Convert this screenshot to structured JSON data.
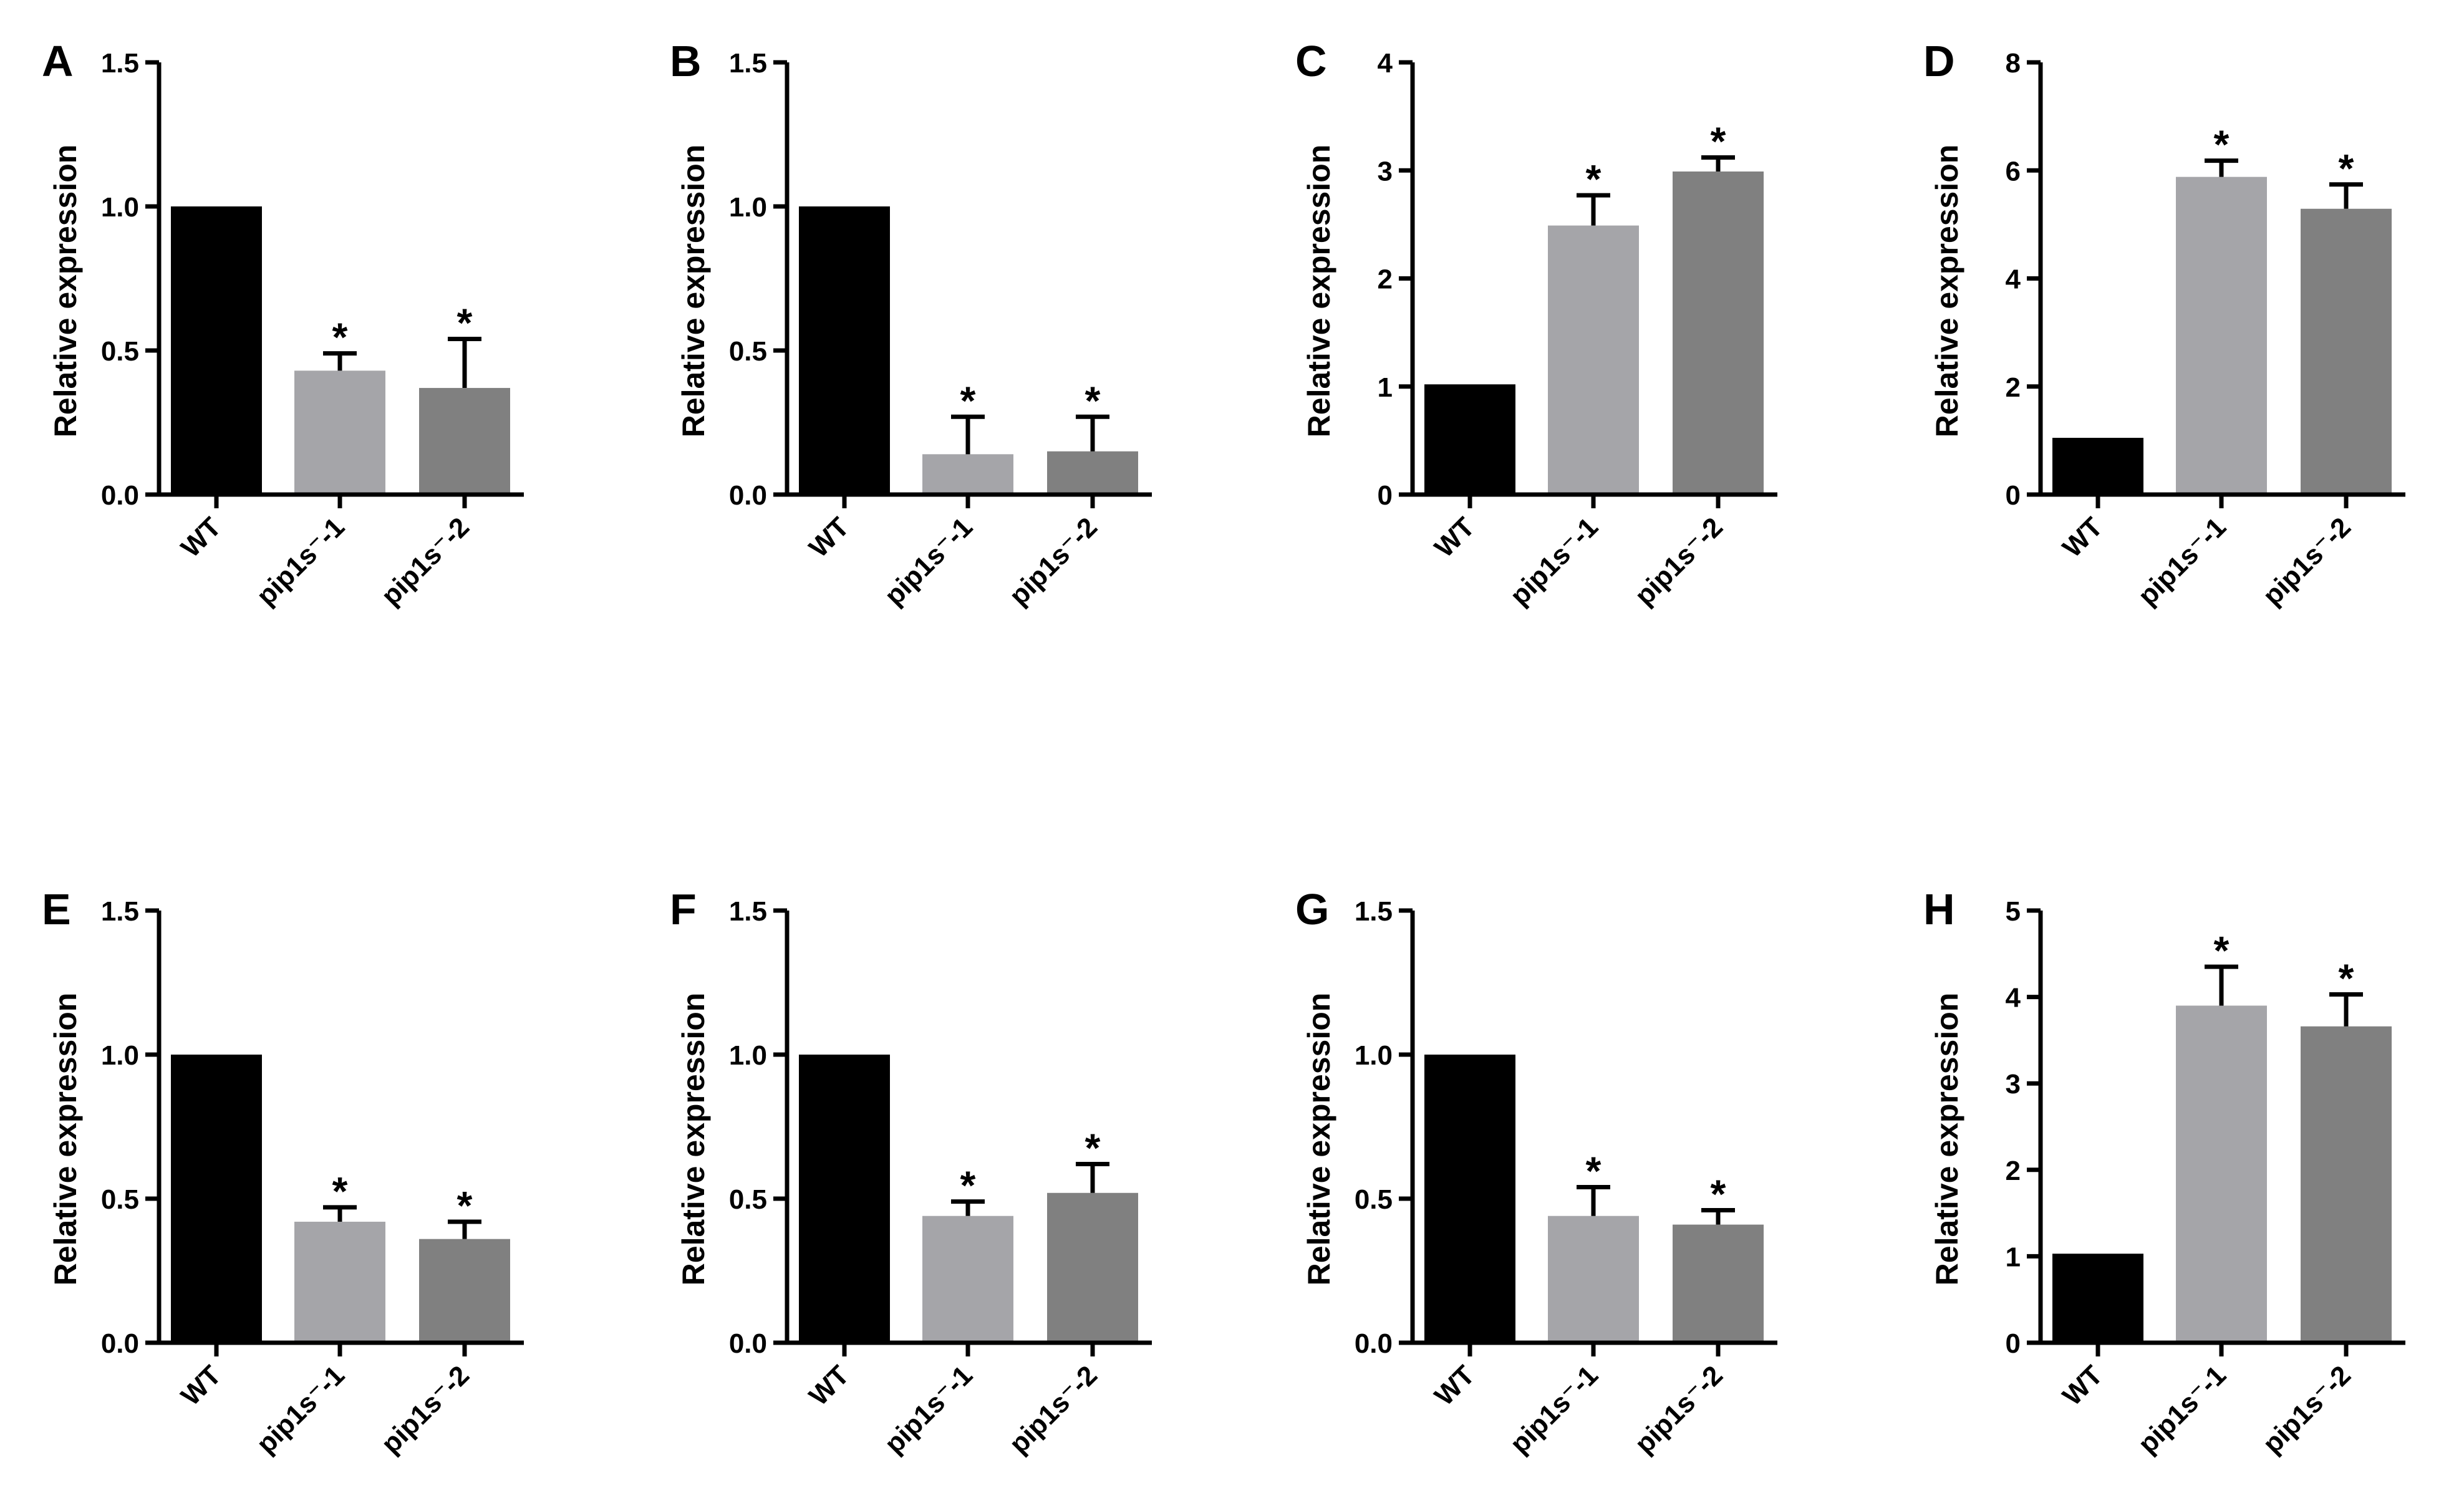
{
  "chart_data": [
    {
      "panel": "A",
      "type": "bar",
      "ylabel": "Relative expression",
      "ylim": [
        0,
        1.5
      ],
      "yticks": [
        "0.0",
        "0.5",
        "1.0",
        "1.5"
      ],
      "categories": [
        "WT",
        "pip1s⁻-1",
        "pip1s⁻-2"
      ],
      "values": [
        1.0,
        0.43,
        0.37
      ],
      "errors": [
        0,
        0.06,
        0.17
      ],
      "significance": [
        "",
        "*",
        "*"
      ],
      "colors": [
        "#000000",
        "#a5a5a9",
        "#808080"
      ]
    },
    {
      "panel": "B",
      "type": "bar",
      "ylabel": "Relative expression",
      "ylim": [
        0,
        1.5
      ],
      "yticks": [
        "0.0",
        "0.5",
        "1.0",
        "1.5"
      ],
      "categories": [
        "WT",
        "pip1s⁻-1",
        "pip1s⁻-2"
      ],
      "values": [
        1.0,
        0.14,
        0.15
      ],
      "errors": [
        0,
        0.13,
        0.12
      ],
      "significance": [
        "",
        "*",
        "*"
      ],
      "colors": [
        "#000000",
        "#a5a5a9",
        "#808080"
      ]
    },
    {
      "panel": "C",
      "type": "bar",
      "ylabel": "Relative expression",
      "ylim": [
        0,
        4
      ],
      "yticks": [
        "0",
        "1",
        "2",
        "3",
        "4"
      ],
      "categories": [
        "WT",
        "pip1s⁻-1",
        "pip1s⁻-2"
      ],
      "values": [
        1.02,
        2.49,
        2.99
      ],
      "errors": [
        0,
        0.28,
        0.13
      ],
      "significance": [
        "",
        "*",
        "*"
      ],
      "colors": [
        "#000000",
        "#a5a5a9",
        "#808080"
      ]
    },
    {
      "panel": "D",
      "type": "bar",
      "ylabel": "Relative expression",
      "ylim": [
        0,
        8
      ],
      "yticks": [
        "0",
        "2",
        "4",
        "6",
        "8"
      ],
      "categories": [
        "WT",
        "pip1s⁻-1",
        "pip1s⁻-2"
      ],
      "values": [
        1.05,
        5.88,
        5.29
      ],
      "errors": [
        0,
        0.3,
        0.45
      ],
      "significance": [
        "",
        "*",
        "*"
      ],
      "colors": [
        "#000000",
        "#a5a5a9",
        "#808080"
      ]
    },
    {
      "panel": "E",
      "type": "bar",
      "ylabel": "Relative expression",
      "ylim": [
        0,
        1.5
      ],
      "yticks": [
        "0.0",
        "0.5",
        "1.0",
        "1.5"
      ],
      "categories": [
        "WT",
        "pip1s⁻-1",
        "pip1s⁻-2"
      ],
      "values": [
        1.0,
        0.42,
        0.36
      ],
      "errors": [
        0,
        0.05,
        0.06
      ],
      "significance": [
        "",
        "*",
        "*"
      ],
      "colors": [
        "#000000",
        "#a5a5a9",
        "#808080"
      ]
    },
    {
      "panel": "F",
      "type": "bar",
      "ylabel": "Relative expression",
      "ylim": [
        0,
        1.5
      ],
      "yticks": [
        "0.0",
        "0.5",
        "1.0",
        "1.5"
      ],
      "categories": [
        "WT",
        "pip1s⁻-1",
        "pip1s⁻-2"
      ],
      "values": [
        1.0,
        0.44,
        0.52
      ],
      "errors": [
        0,
        0.05,
        0.1
      ],
      "significance": [
        "",
        "*",
        "*"
      ],
      "colors": [
        "#000000",
        "#a5a5a9",
        "#808080"
      ]
    },
    {
      "panel": "G",
      "type": "bar",
      "ylabel": "Relative expression",
      "ylim": [
        0,
        1.5
      ],
      "yticks": [
        "0.0",
        "0.5",
        "1.0",
        "1.5"
      ],
      "categories": [
        "WT",
        "pip1s⁻-1",
        "pip1s⁻-2"
      ],
      "values": [
        1.0,
        0.44,
        0.41
      ],
      "errors": [
        0,
        0.1,
        0.05
      ],
      "significance": [
        "",
        "*",
        "*"
      ],
      "colors": [
        "#000000",
        "#a5a5a9",
        "#808080"
      ]
    },
    {
      "panel": "H",
      "type": "bar",
      "ylabel": "Relative expression",
      "ylim": [
        0,
        5
      ],
      "yticks": [
        "0",
        "1",
        "2",
        "3",
        "4",
        "5"
      ],
      "categories": [
        "WT",
        "pip1s⁻-1",
        "pip1s⁻-2"
      ],
      "values": [
        1.03,
        3.9,
        3.66
      ],
      "errors": [
        0,
        0.45,
        0.37
      ],
      "significance": [
        "",
        "*",
        "*"
      ],
      "colors": [
        "#000000",
        "#a5a5a9",
        "#808080"
      ]
    }
  ]
}
